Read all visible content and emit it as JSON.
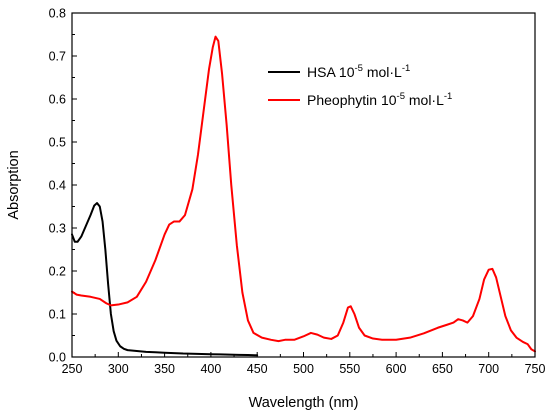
{
  "chart_data": {
    "type": "line",
    "title": "",
    "xlabel": "Wavelength (nm)",
    "ylabel": "Absorption",
    "xlim": [
      250,
      750
    ],
    "ylim": [
      0.0,
      0.8
    ],
    "x_ticks": [
      "250",
      "300",
      "350",
      "400",
      "450",
      "500",
      "550",
      "600",
      "650",
      "700",
      "750"
    ],
    "y_ticks": [
      "0.0",
      "0.1",
      "0.2",
      "0.3",
      "0.4",
      "0.5",
      "0.6",
      "0.7",
      "0.8"
    ],
    "grid": false,
    "legend_position": "top-right",
    "series": [
      {
        "name": "HSA 10-5 mol·L-1",
        "legend": {
          "base": "HSA 10",
          "exp1": "-5",
          "mid": " mol·L",
          "exp2": "-1"
        },
        "color": "#000000",
        "points": [
          [
            250,
            0.285
          ],
          [
            253,
            0.268
          ],
          [
            256,
            0.268
          ],
          [
            260,
            0.28
          ],
          [
            265,
            0.305
          ],
          [
            270,
            0.33
          ],
          [
            274,
            0.352
          ],
          [
            277,
            0.358
          ],
          [
            280,
            0.35
          ],
          [
            283,
            0.315
          ],
          [
            286,
            0.25
          ],
          [
            289,
            0.17
          ],
          [
            292,
            0.1
          ],
          [
            295,
            0.06
          ],
          [
            298,
            0.038
          ],
          [
            302,
            0.025
          ],
          [
            306,
            0.019
          ],
          [
            310,
            0.016
          ],
          [
            320,
            0.014
          ],
          [
            330,
            0.012
          ],
          [
            340,
            0.011
          ],
          [
            350,
            0.01
          ],
          [
            360,
            0.009
          ],
          [
            370,
            0.008
          ],
          [
            380,
            0.0075
          ],
          [
            390,
            0.007
          ],
          [
            400,
            0.0065
          ],
          [
            410,
            0.006
          ],
          [
            420,
            0.0055
          ],
          [
            430,
            0.005
          ],
          [
            440,
            0.0045
          ],
          [
            450,
            0.004
          ]
        ]
      },
      {
        "name": "Pheophytin 10-5 mol·L-1",
        "legend": {
          "base": "Pheophytin 10",
          "exp1": "-5",
          "mid": " mol·L",
          "exp2": "-1"
        },
        "color": "#ff0000",
        "points": [
          [
            250,
            0.152
          ],
          [
            255,
            0.145
          ],
          [
            260,
            0.143
          ],
          [
            270,
            0.14
          ],
          [
            280,
            0.135
          ],
          [
            287,
            0.125
          ],
          [
            292,
            0.12
          ],
          [
            300,
            0.122
          ],
          [
            310,
            0.127
          ],
          [
            320,
            0.14
          ],
          [
            330,
            0.175
          ],
          [
            340,
            0.225
          ],
          [
            350,
            0.285
          ],
          [
            355,
            0.308
          ],
          [
            360,
            0.315
          ],
          [
            366,
            0.315
          ],
          [
            372,
            0.33
          ],
          [
            380,
            0.39
          ],
          [
            386,
            0.47
          ],
          [
            392,
            0.57
          ],
          [
            398,
            0.67
          ],
          [
            402,
            0.72
          ],
          [
            405,
            0.745
          ],
          [
            408,
            0.735
          ],
          [
            412,
            0.66
          ],
          [
            417,
            0.54
          ],
          [
            422,
            0.4
          ],
          [
            428,
            0.26
          ],
          [
            434,
            0.15
          ],
          [
            440,
            0.085
          ],
          [
            446,
            0.056
          ],
          [
            455,
            0.045
          ],
          [
            465,
            0.04
          ],
          [
            473,
            0.037
          ],
          [
            480,
            0.04
          ],
          [
            490,
            0.04
          ],
          [
            500,
            0.048
          ],
          [
            508,
            0.056
          ],
          [
            515,
            0.052
          ],
          [
            522,
            0.045
          ],
          [
            530,
            0.042
          ],
          [
            537,
            0.05
          ],
          [
            543,
            0.08
          ],
          [
            548,
            0.115
          ],
          [
            551,
            0.118
          ],
          [
            555,
            0.1
          ],
          [
            560,
            0.068
          ],
          [
            566,
            0.05
          ],
          [
            575,
            0.043
          ],
          [
            585,
            0.04
          ],
          [
            600,
            0.04
          ],
          [
            615,
            0.045
          ],
          [
            630,
            0.055
          ],
          [
            645,
            0.068
          ],
          [
            655,
            0.075
          ],
          [
            662,
            0.08
          ],
          [
            667,
            0.088
          ],
          [
            672,
            0.085
          ],
          [
            677,
            0.08
          ],
          [
            683,
            0.095
          ],
          [
            690,
            0.135
          ],
          [
            695,
            0.18
          ],
          [
            700,
            0.203
          ],
          [
            704,
            0.205
          ],
          [
            708,
            0.185
          ],
          [
            713,
            0.14
          ],
          [
            718,
            0.095
          ],
          [
            724,
            0.062
          ],
          [
            730,
            0.045
          ],
          [
            737,
            0.035
          ],
          [
            742,
            0.03
          ],
          [
            746,
            0.018
          ],
          [
            750,
            0.013
          ]
        ]
      }
    ]
  }
}
